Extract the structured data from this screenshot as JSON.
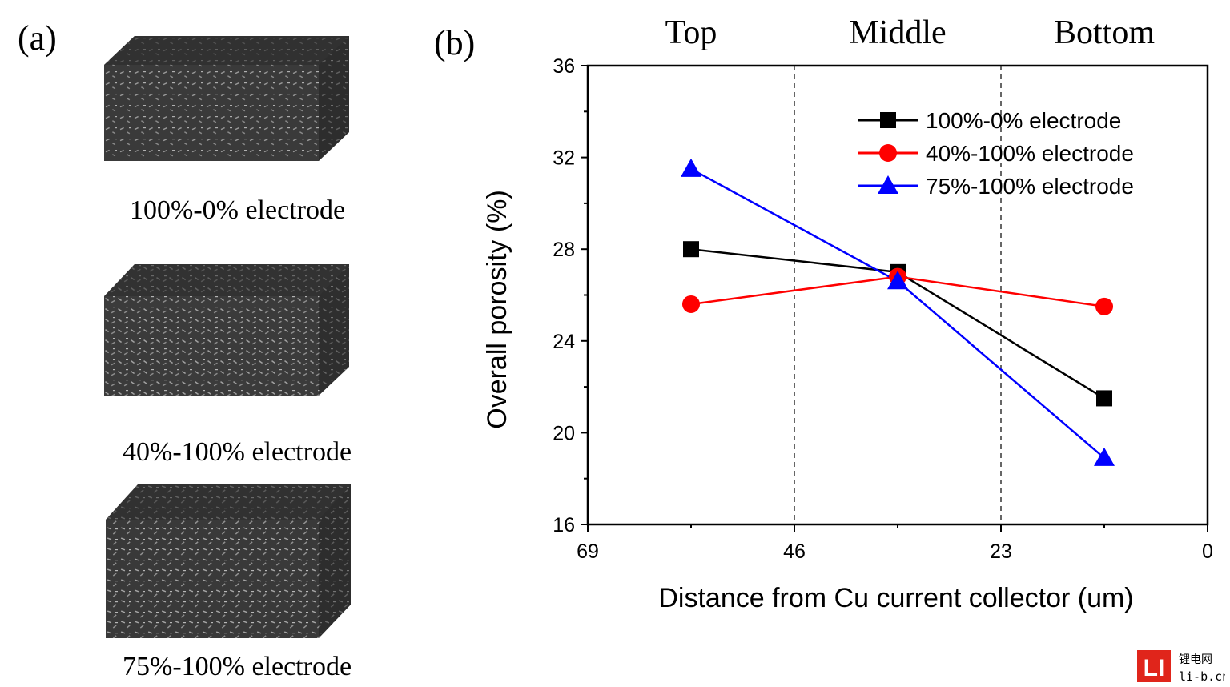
{
  "panel_a": {
    "label": "(a)",
    "cubes": [
      {
        "caption": "100%-0% electrode"
      },
      {
        "caption": "40%-100% electrode"
      },
      {
        "caption": "75%-100% electrode"
      }
    ]
  },
  "panel_b": {
    "label": "(b)"
  },
  "chart_data": {
    "type": "line",
    "title": "",
    "xlabel": "Distance from Cu current collector (um)",
    "ylabel": "Overall porosity (%)",
    "xlim": [
      69,
      0
    ],
    "ylim": [
      16,
      36
    ],
    "xticks": [
      69,
      46,
      23,
      0
    ],
    "yticks": [
      16,
      20,
      24,
      28,
      32,
      36
    ],
    "region_labels": [
      {
        "text": "Top",
        "x": 57.5
      },
      {
        "text": "Middle",
        "x": 34.5
      },
      {
        "text": "Bottom",
        "x": 11.5
      }
    ],
    "divider_lines_x": [
      46,
      23
    ],
    "x": [
      57.5,
      34.5,
      11.5
    ],
    "series": [
      {
        "name": "100%-0% electrode",
        "values": [
          28.0,
          27.0,
          21.5
        ],
        "color": "#000000",
        "marker": "square"
      },
      {
        "name": "40%-100% electrode",
        "values": [
          25.6,
          26.8,
          25.5
        ],
        "color": "#ff0000",
        "marker": "circle"
      },
      {
        "name": "75%-100% electrode",
        "values": [
          31.5,
          26.6,
          18.9
        ],
        "color": "#0000ff",
        "marker": "triangle"
      }
    ],
    "legend_position": "top-right"
  },
  "watermark": {
    "mark": "LI",
    "text_cn": "锂电网",
    "text_url": "li-b.cn",
    "color": "#e0251b"
  }
}
